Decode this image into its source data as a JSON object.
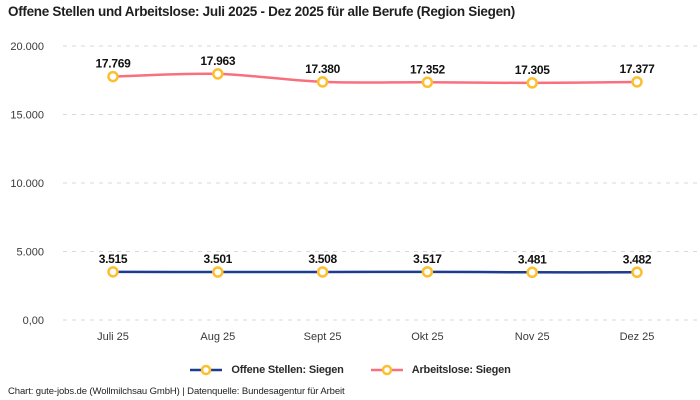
{
  "page": {
    "footer": "Chart: gute-jobs.de (Wollmilchsau GmbH) | Datenquelle: Bundesagentur für Arbeit"
  },
  "colors": {
    "background": "#ffffff",
    "gridline": "#d9d9d9",
    "title_text": "#1f1f1f",
    "tick_text": "#3a3a3a",
    "data_label_text": "#111111"
  },
  "chart_data": {
    "type": "line",
    "title": "Offene Stellen und Arbeitslose: Juli 2025 - Dez 2025 für alle Berufe (Region Siegen)",
    "categories": [
      "Juli 25",
      "Aug 25",
      "Sept 25",
      "Okt 25",
      "Nov 25",
      "Dez 25"
    ],
    "series": [
      {
        "name": "Offene Stellen: Siegen",
        "color": "#1e3c8f",
        "values": [
          3515,
          3501,
          3508,
          3517,
          3481,
          3482
        ],
        "value_labels": [
          "3.515",
          "3.501",
          "3.508",
          "3.517",
          "3.481",
          "3.482"
        ]
      },
      {
        "name": "Arbeitslose: Siegen",
        "color": "#f8707e",
        "values": [
          17769,
          17963,
          17380,
          17352,
          17305,
          17377
        ],
        "value_labels": [
          "17.769",
          "17.963",
          "17.380",
          "17.352",
          "17.305",
          "17.377"
        ]
      }
    ],
    "marker": {
      "shape": "ring",
      "stroke": "#fcbf2e",
      "fill": "#ffffff"
    },
    "yticks": [
      {
        "value": 0,
        "label": "0,00"
      },
      {
        "value": 5000,
        "label": "5.000"
      },
      {
        "value": 10000,
        "label": "10.000"
      },
      {
        "value": 15000,
        "label": "15.000"
      },
      {
        "value": 20000,
        "label": "20.000"
      }
    ],
    "ylim": [
      0,
      20000
    ],
    "grid": "horizontal-dashed",
    "legend_position": "bottom",
    "xlabel": "",
    "ylabel": ""
  }
}
